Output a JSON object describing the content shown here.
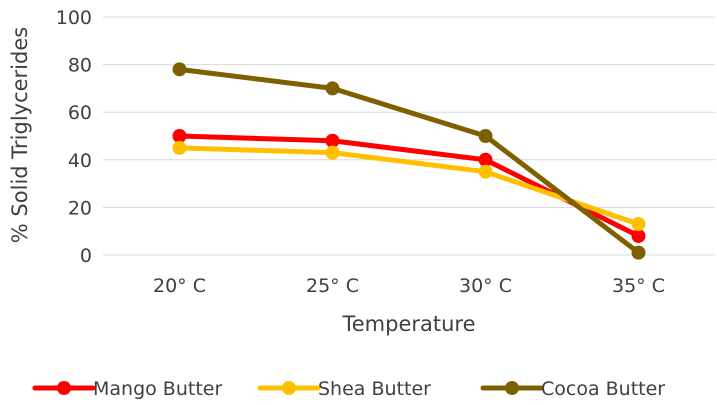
{
  "chart_data": {
    "type": "line",
    "title": "",
    "xlabel": "Temperature",
    "ylabel": "% Solid Triglycerides",
    "categories": [
      "20° C",
      "25° C",
      "30° C",
      "35° C"
    ],
    "ylim": [
      0,
      100
    ],
    "yticks": [
      0,
      20,
      40,
      60,
      80,
      100
    ],
    "grid": "horizontal",
    "legend_position": "bottom",
    "markers": true,
    "series": [
      {
        "name": "Mango Butter",
        "color": "#ff0000",
        "values": [
          50,
          48,
          40,
          8
        ]
      },
      {
        "name": "Shea Butter",
        "color": "#ffc000",
        "values": [
          45,
          43,
          35,
          13
        ]
      },
      {
        "name": "Cocoa Butter",
        "color": "#7f6000",
        "values": [
          78,
          70,
          50,
          1
        ]
      }
    ]
  }
}
